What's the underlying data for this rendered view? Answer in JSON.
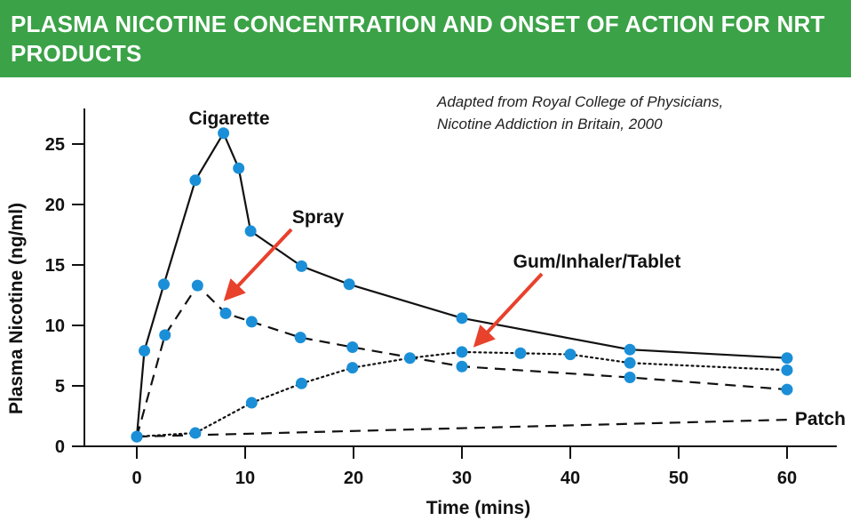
{
  "header": {
    "title": "PLASMA NICOTINE CONCENTRATION AND ONSET OF ACTION FOR NRT PRODUCTS"
  },
  "source": {
    "line1": "Adapted from Royal College of Physicians,",
    "line2": "Nicotine Addiction in Britain, 2000"
  },
  "colors": {
    "banner": "#3ba247",
    "marker": "#1a8fd8",
    "arrow": "#e8412c",
    "line": "#111111"
  },
  "chart_data": {
    "type": "line",
    "xlabel": "Time (mins)",
    "ylabel": "Plasma Nicotine (ng/ml)",
    "xlim": [
      -10,
      65
    ],
    "ylim": [
      0,
      27
    ],
    "xticks": [
      0,
      10,
      20,
      30,
      40,
      50,
      60
    ],
    "yticks": [
      0,
      5,
      10,
      15,
      20,
      25
    ],
    "series": [
      {
        "name": "Cigarette",
        "style": "solid",
        "markers": true,
        "x": [
          0,
          0.7,
          2.5,
          5.4,
          8,
          9.4,
          10.5,
          15.2,
          19.6,
          30,
          45.5,
          60
        ],
        "y": [
          0.8,
          7.9,
          13.4,
          22,
          25.9,
          23,
          17.8,
          14.9,
          13.4,
          10.6,
          8,
          7.3
        ]
      },
      {
        "name": "Spray",
        "style": "dashed",
        "markers": true,
        "x": [
          0,
          2.6,
          5.6,
          8.2,
          10.6,
          15.1,
          19.9,
          30,
          45.5,
          60
        ],
        "y": [
          0.8,
          9.2,
          13.3,
          11,
          10.3,
          9,
          8.2,
          6.6,
          5.7,
          4.7
        ]
      },
      {
        "name": "Gum/Inhaler/Tablet",
        "style": "dotted",
        "markers": true,
        "x": [
          0,
          5.4,
          10.6,
          15.2,
          19.9,
          25.2,
          30,
          35.4,
          40,
          45.5,
          60
        ],
        "y": [
          0.8,
          1.1,
          3.6,
          5.2,
          6.5,
          7.3,
          7.8,
          7.7,
          7.6,
          6.9,
          6.3
        ]
      },
      {
        "name": "Patch",
        "style": "dashed",
        "markers": false,
        "x": [
          0,
          60
        ],
        "y": [
          0.8,
          2.2
        ]
      }
    ]
  }
}
